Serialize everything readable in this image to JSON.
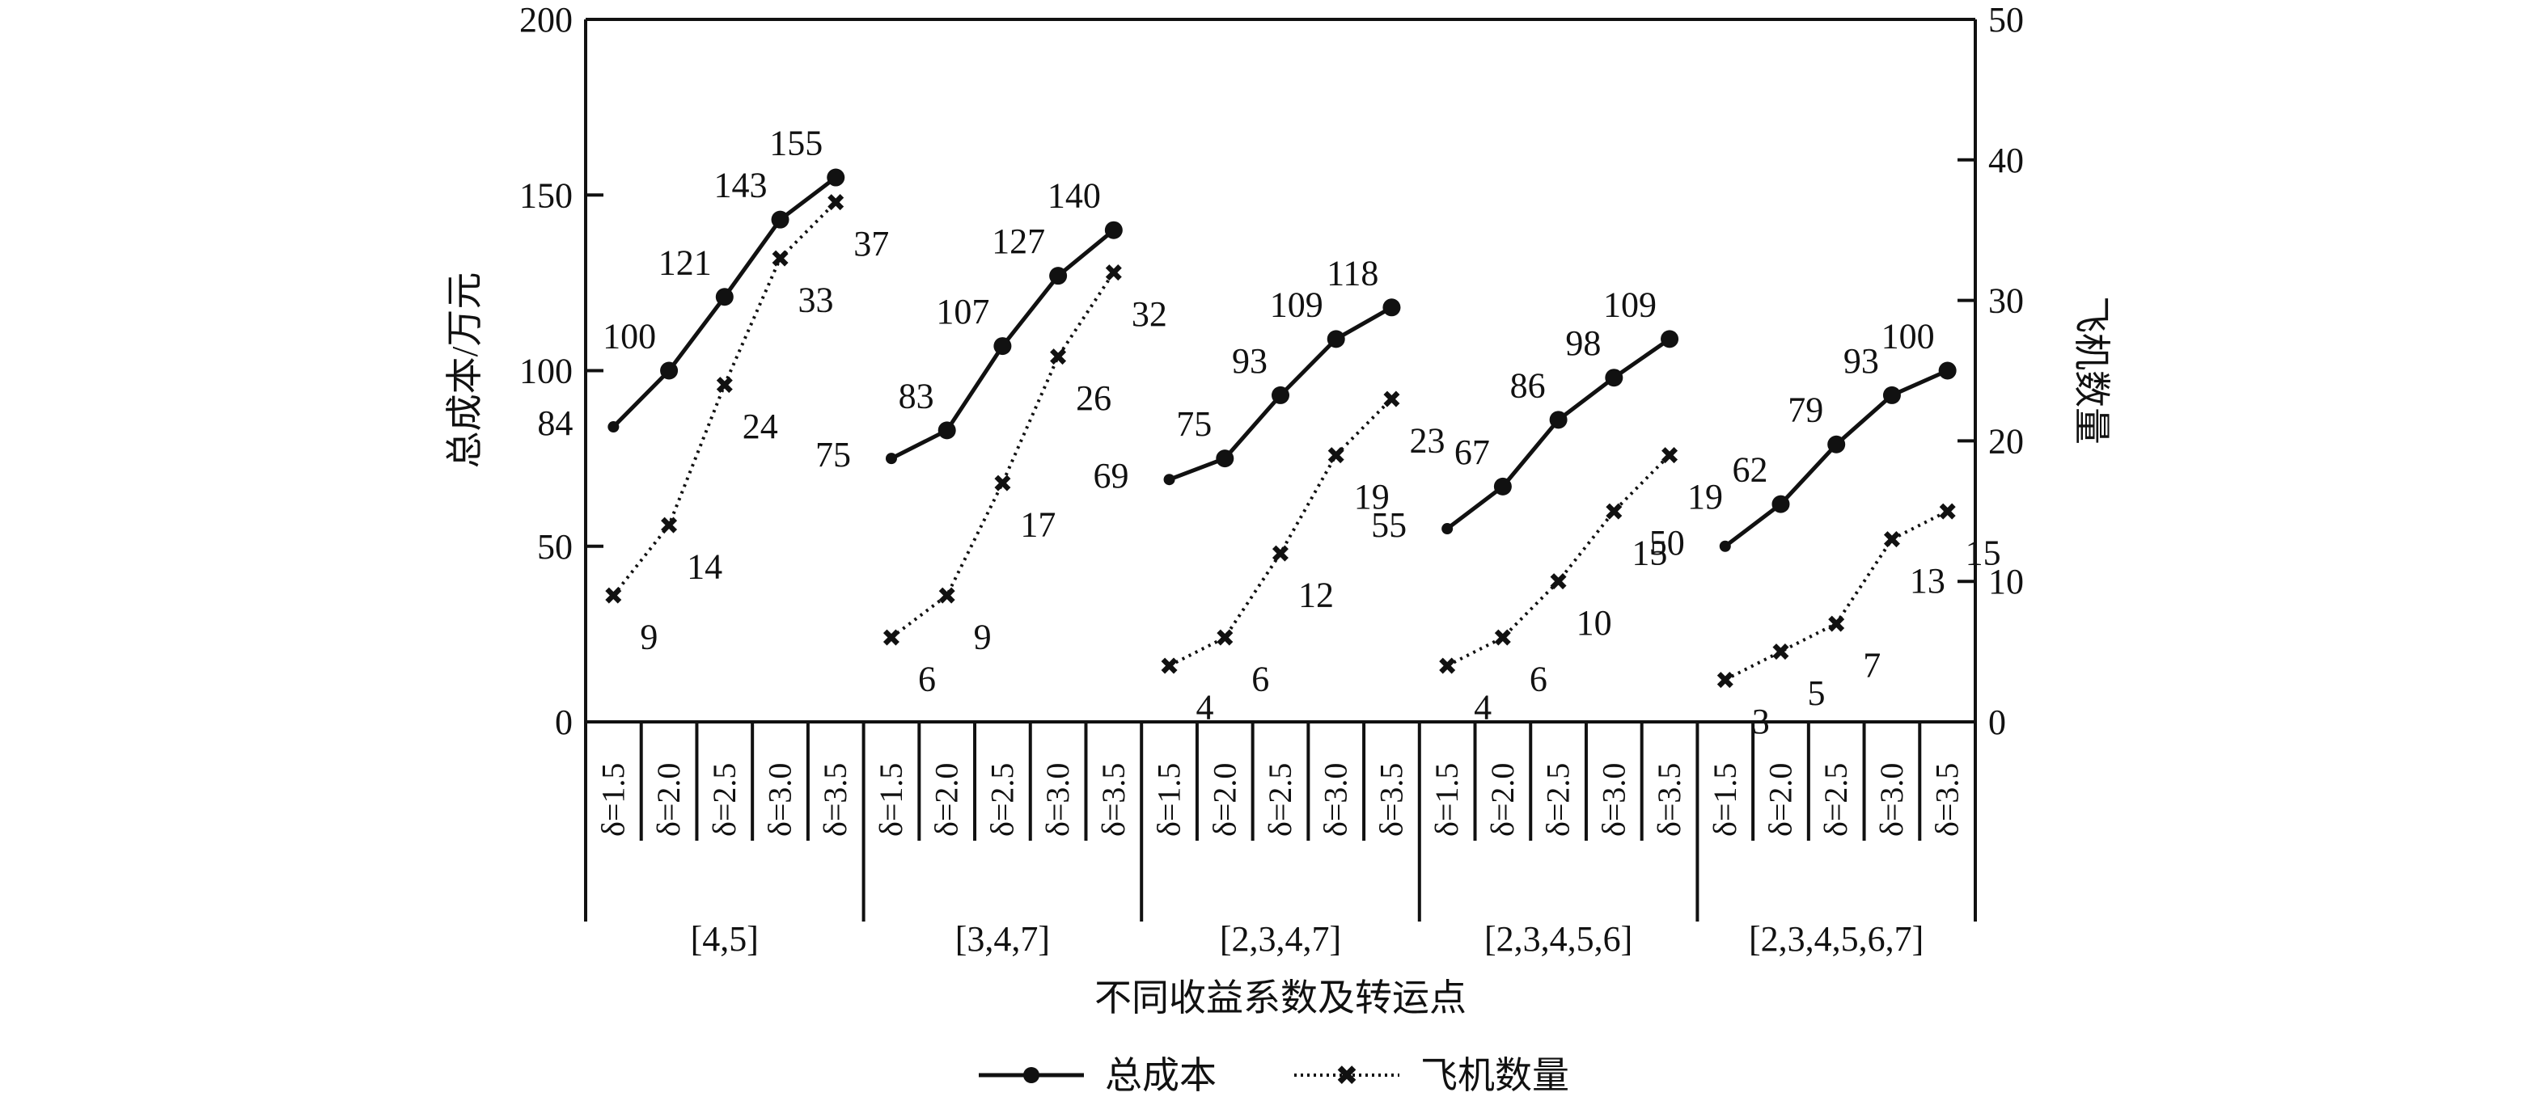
{
  "chart_data": {
    "type": "line",
    "y_left": {
      "label": "总成本/万元",
      "ticks": [
        0,
        50,
        100,
        150,
        200
      ],
      "lim": [
        0,
        200
      ]
    },
    "y_right": {
      "label": "飞机数量",
      "ticks": [
        0,
        10,
        20,
        30,
        40,
        50
      ],
      "lim": [
        0,
        50
      ]
    },
    "xlabel": "不同收益系数及转运点",
    "categories": [
      "δ=1.5",
      "δ=2.0",
      "δ=2.5",
      "δ=3.0",
      "δ=3.5"
    ],
    "groups": [
      {
        "name": "[4,5]",
        "cost": [
          84,
          100,
          121,
          143,
          155
        ],
        "planes": [
          9,
          14,
          24,
          33,
          37
        ]
      },
      {
        "name": "[3,4,7]",
        "cost": [
          75,
          83,
          107,
          127,
          140
        ],
        "planes": [
          6,
          9,
          17,
          26,
          32
        ]
      },
      {
        "name": "[2,3,4,7]",
        "cost": [
          69,
          75,
          93,
          109,
          118
        ],
        "planes": [
          4,
          6,
          12,
          19,
          23
        ]
      },
      {
        "name": "[2,3,4,5,6]",
        "cost": [
          55,
          67,
          86,
          98,
          109
        ],
        "planes": [
          4,
          6,
          10,
          15,
          19
        ]
      },
      {
        "name": "[2,3,4,5,6,7]",
        "cost": [
          50,
          62,
          79,
          93,
          100
        ],
        "planes": [
          3,
          5,
          7,
          13,
          15
        ]
      }
    ],
    "series": [
      {
        "name": "总成本",
        "axis": "left",
        "style": "solid-circle"
      },
      {
        "name": "飞机数量",
        "axis": "right",
        "style": "dotted-cross"
      }
    ],
    "legend_position": "bottom-center",
    "grid": false
  },
  "colors": {
    "line": "#111111",
    "background": "#ffffff"
  }
}
